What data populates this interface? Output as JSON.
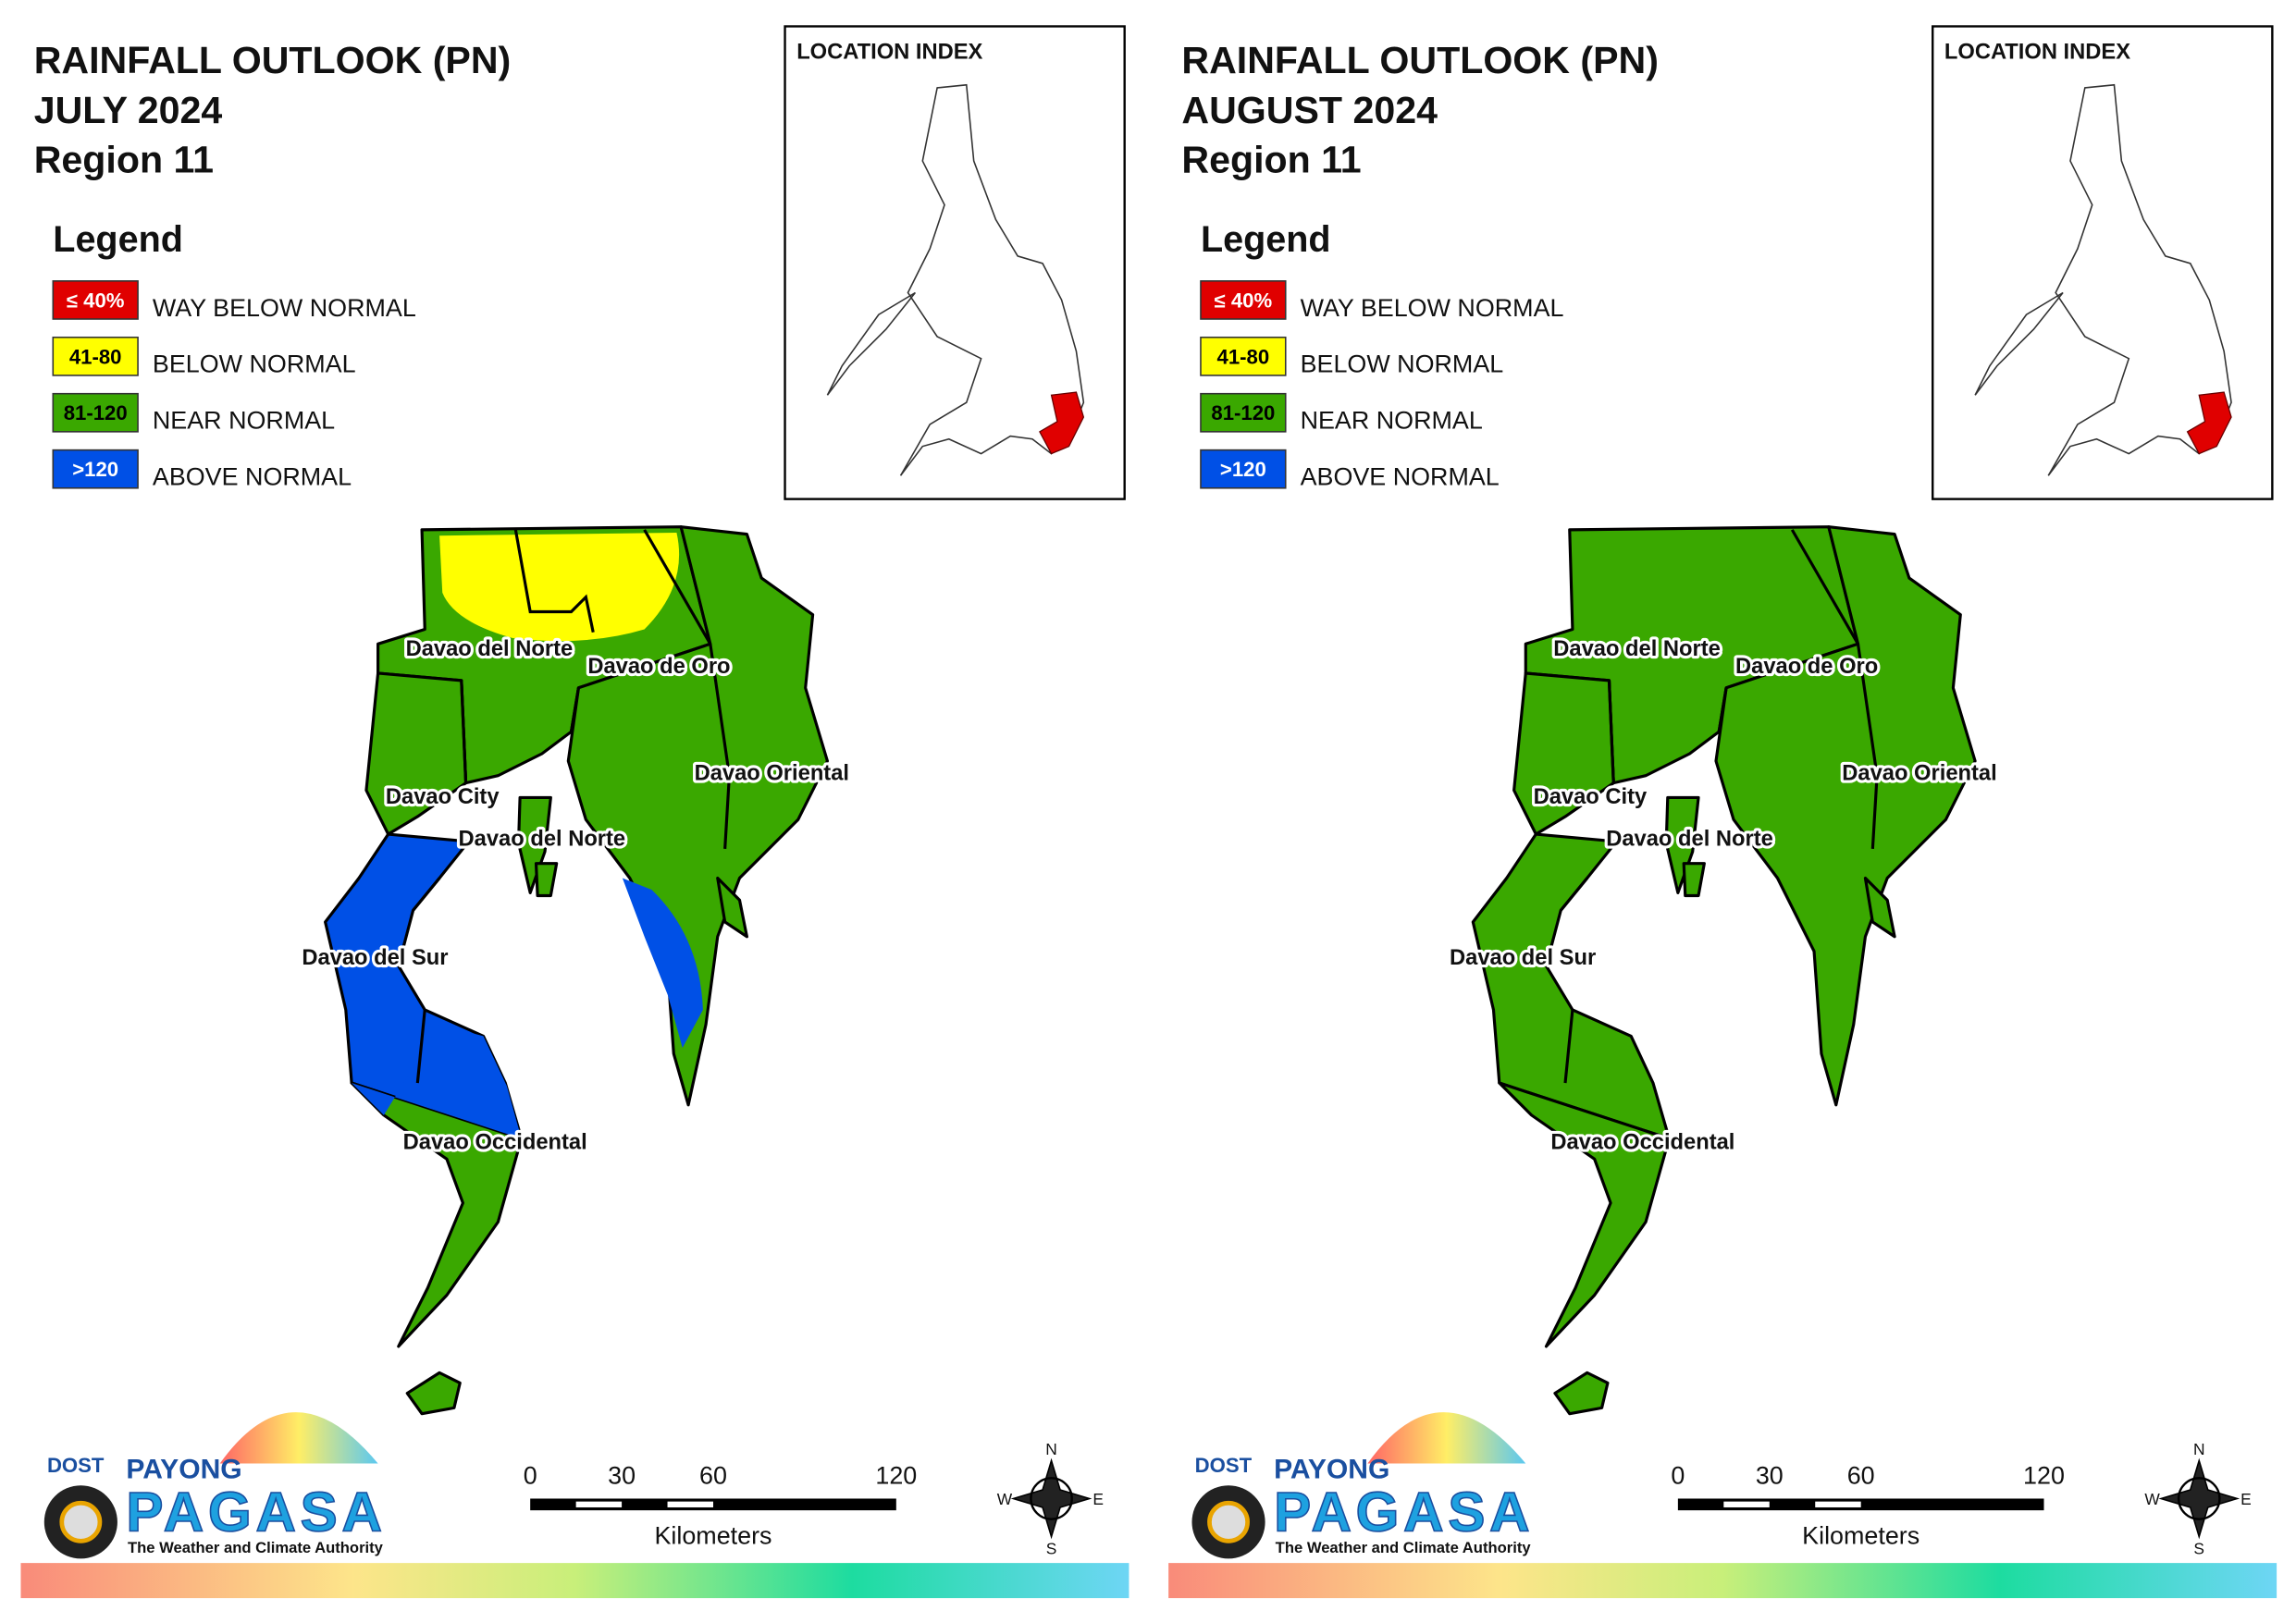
{
  "panels": [
    {
      "title": [
        "RAINFALL OUTLOOK (PN)",
        "JULY 2024",
        "Region 11"
      ],
      "location_index": "LOCATION INDEX",
      "legend": {
        "title": "Legend",
        "items": [
          {
            "swatch": "≤ 40%",
            "label": "WAY BELOW NORMAL",
            "color": "#e00000"
          },
          {
            "swatch": "41-80",
            "label": "BELOW NORMAL",
            "color": "#ffff00"
          },
          {
            "swatch": "81-120",
            "label": "NEAR NORMAL",
            "color": "#3aa800"
          },
          {
            "swatch": ">120",
            "label": "ABOVE NORMAL",
            "color": "#0050e6"
          }
        ]
      },
      "map_labels": [
        "Davao del Norte",
        "Davao de Oro",
        "Davao City",
        "Davao Oriental",
        "Davao del Norte",
        "Davao del Sur",
        "Davao Occidental"
      ],
      "scale": {
        "ticks": [
          0,
          30,
          60,
          120
        ],
        "unit": "Kilometers"
      },
      "compass": [
        "N",
        "E",
        "S",
        "W"
      ],
      "logo": {
        "agency": "DOST",
        "name_top": "PAYONG",
        "name": "PAGASA",
        "tagline": "The Weather and Climate Authority"
      }
    },
    {
      "title": [
        "RAINFALL OUTLOOK (PN)",
        "AUGUST 2024",
        "Region 11"
      ],
      "location_index": "LOCATION INDEX",
      "legend": {
        "title": "Legend",
        "items": [
          {
            "swatch": "≤ 40%",
            "label": "WAY BELOW NORMAL",
            "color": "#e00000"
          },
          {
            "swatch": "41-80",
            "label": "BELOW NORMAL",
            "color": "#ffff00"
          },
          {
            "swatch": "81-120",
            "label": "NEAR NORMAL",
            "color": "#3aa800"
          },
          {
            "swatch": ">120",
            "label": "ABOVE NORMAL",
            "color": "#0050e6"
          }
        ]
      },
      "map_labels": [
        "Davao del Norte",
        "Davao de Oro",
        "Davao City",
        "Davao Oriental",
        "Davao del Norte",
        "Davao del Sur",
        "Davao Occidental"
      ],
      "scale": {
        "ticks": [
          0,
          30,
          60,
          120
        ],
        "unit": "Kilometers"
      },
      "compass": [
        "N",
        "E",
        "S",
        "W"
      ],
      "logo": {
        "agency": "DOST",
        "name_top": "PAYONG",
        "name": "PAGASA",
        "tagline": "The Weather and Climate Authority"
      }
    }
  ]
}
